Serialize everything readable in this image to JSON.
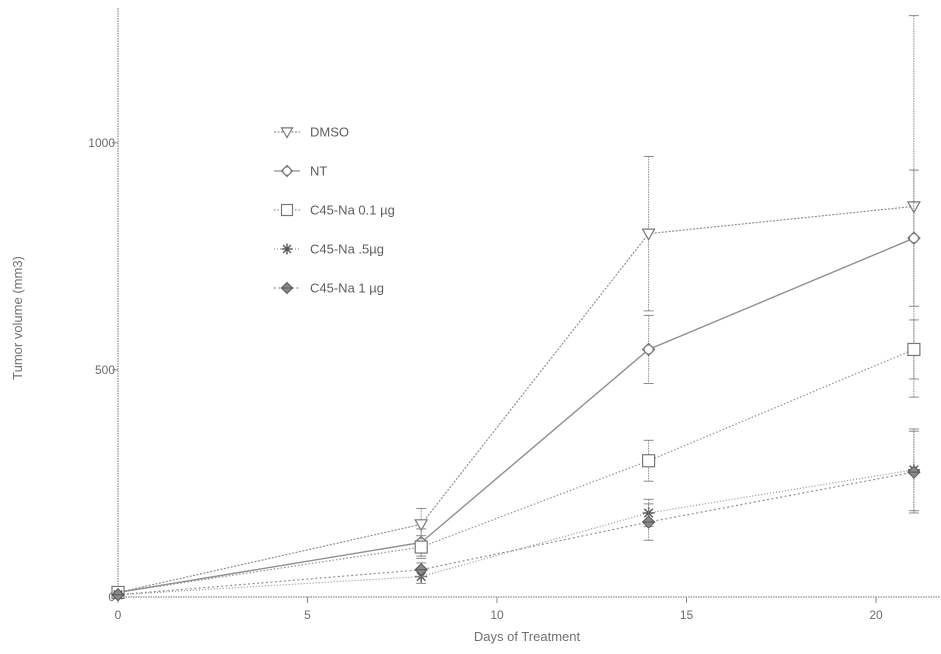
{
  "chart_data": {
    "type": "line",
    "xlabel": "Days of Treatment",
    "ylabel": "Tumor volume (mm3)",
    "xlim": [
      0,
      21.5
    ],
    "ylim": [
      0,
      1300
    ],
    "x_ticks": [
      0,
      5,
      10,
      15,
      20
    ],
    "y_ticks": [
      0,
      500,
      1000
    ],
    "x_tick_labels": [
      "0",
      "5",
      "10",
      "15",
      "20"
    ],
    "y_tick_labels": [
      "0",
      "500",
      "1000"
    ],
    "legend_placement": "upper-left",
    "grid": false,
    "series": [
      {
        "name": "DMSO",
        "marker": "triangle-down-open",
        "x": [
          0,
          8,
          14,
          21
        ],
        "y": [
          10,
          160,
          800,
          860
        ],
        "err": [
          5,
          35,
          170,
          420
        ]
      },
      {
        "name": "NT",
        "marker": "diamond-open",
        "x": [
          0,
          8,
          14,
          21
        ],
        "y": [
          10,
          120,
          545,
          790
        ],
        "err": [
          5,
          30,
          75,
          150
        ]
      },
      {
        "name": "C45-Na 0.1 µg",
        "marker": "square-open",
        "x": [
          0,
          8,
          14,
          21
        ],
        "y": [
          10,
          110,
          300,
          545
        ],
        "err": [
          5,
          25,
          45,
          65
        ]
      },
      {
        "name": "C45-Na .5µg",
        "marker": "star",
        "x": [
          0,
          8,
          14,
          21
        ],
        "y": [
          5,
          45,
          185,
          280
        ],
        "err": [
          3,
          15,
          30,
          90
        ]
      },
      {
        "name": "C45-Na 1 µg",
        "marker": "diamond-filled",
        "x": [
          0,
          8,
          14,
          21
        ],
        "y": [
          5,
          60,
          165,
          275
        ],
        "err": [
          3,
          15,
          40,
          90
        ]
      }
    ]
  }
}
